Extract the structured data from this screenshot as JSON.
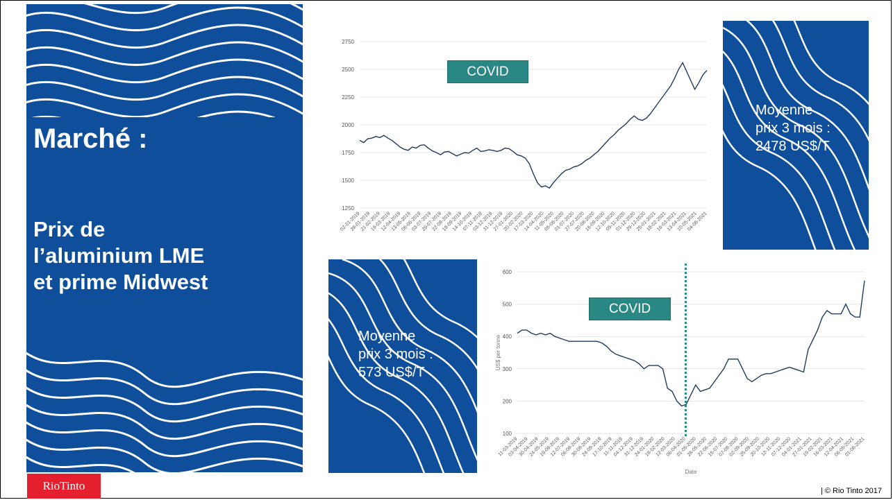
{
  "slide": {
    "title": "Marché :",
    "subtitle_lines": [
      "Prix de",
      "l’aluminium LME",
      "et prime Midwest"
    ],
    "logo_text": "RioTinto",
    "copyright": "| © Rio Tinto 2017"
  },
  "colors": {
    "brand_blue": "#0e4e9a",
    "covid_box": "#2a8884",
    "covid_line": "#2a8884",
    "series_line": "#1f3a5c",
    "logo_red": "#e4202e"
  },
  "annotations": {
    "lme_avg": [
      "Moyenne",
      "prix 3 mois :",
      "2478 US$/T"
    ],
    "midwest_avg": [
      "Moyenne",
      "prix 3 mois :",
      "573 US$/T"
    ]
  },
  "chart_data": [
    {
      "type": "line",
      "title": "",
      "annotation": "COVID",
      "covid_marker": "07-04-2020",
      "ylim": [
        1250,
        2750
      ],
      "yticks": [
        1250,
        1500,
        1750,
        2000,
        2250,
        2500,
        2750
      ],
      "grid": true,
      "xtick_labels": [
        "02-01-2019",
        "28-01-2019",
        "21-02-2019",
        "19-03-2019",
        "12-04-2019",
        "13-05-2019",
        "06-06-2019",
        "03-07-2019",
        "29-07-2019",
        "22-08-2019",
        "18-09-2019",
        "14-10-2019",
        "07-11-2019",
        "03-12-2019",
        "31-12-2019",
        "27-01-2020",
        "20-02-2020",
        "17-03-2020",
        "14-04-2020",
        "11-05-2020",
        "05-06-2020",
        "01-07-2020",
        "27-07-2020",
        "20-08-2020",
        "16-09-2020",
        "12-10-2020",
        "05-11-2020",
        "01-12-2020",
        "29-12-2020",
        "25-01-2021",
        "18-02-2021",
        "16-03-2021",
        "13-04-2021",
        "10-05-2021",
        "04-06-2021"
      ],
      "series": [
        {
          "values": [
            1860,
            1840,
            1875,
            1880,
            1895,
            1885,
            1905,
            1880,
            1860,
            1830,
            1800,
            1780,
            1770,
            1800,
            1790,
            1815,
            1820,
            1790,
            1765,
            1750,
            1730,
            1755,
            1760,
            1740,
            1720,
            1735,
            1750,
            1745,
            1770,
            1790,
            1760,
            1765,
            1775,
            1770,
            1760,
            1770,
            1790,
            1785,
            1760,
            1730,
            1720,
            1700,
            1650,
            1560,
            1480,
            1440,
            1450,
            1430,
            1480,
            1520,
            1560,
            1590,
            1600,
            1620,
            1630,
            1650,
            1680,
            1700,
            1730,
            1760,
            1800,
            1840,
            1880,
            1910,
            1950,
            1980,
            2010,
            2050,
            2080,
            2050,
            2040,
            2060,
            2100,
            2150,
            2200,
            2250,
            2300,
            2350,
            2420,
            2500,
            2560,
            2480,
            2400,
            2320,
            2380,
            2450,
            2490
          ]
        }
      ]
    },
    {
      "type": "line",
      "title": "",
      "annotation": "COVID",
      "covid_marker": "06-04-2020",
      "ylabel": "US$ per tonne",
      "xlabel": "Date",
      "ylim": [
        100,
        600
      ],
      "yticks": [
        100,
        200,
        300,
        400,
        500,
        600
      ],
      "grid": true,
      "xtick_labels": [
        "11-03-2019",
        "03-04-2019",
        "30-04-2019",
        "24-05-2019",
        "19-06-2019",
        "12-07-2019",
        "06-08-2019",
        "30-08-2019",
        "24-09-2019",
        "17-10-2019",
        "11-11-2019",
        "04-12-2019",
        "31-12-2019",
        "24-01-2020",
        "18-02-2020",
        "12-03-2020",
        "06-04-2020",
        "01-05-2020",
        "28-05-2020",
        "22-06-2020",
        "15-07-2020",
        "07-08-2020",
        "02-09-2020",
        "25-09-2020",
        "20-10-2020",
        "12-11-2020",
        "07-12-2020",
        "04-01-2021",
        "27-01-2021",
        "19-02-2021",
        "16-03-2021",
        "12-04-2021",
        "06-05-2021",
        "01-06-2021"
      ],
      "series": [
        {
          "values": [
            410,
            420,
            420,
            410,
            405,
            410,
            405,
            410,
            400,
            395,
            390,
            385,
            385,
            385,
            385,
            385,
            385,
            385,
            380,
            370,
            355,
            345,
            340,
            335,
            330,
            325,
            315,
            300,
            310,
            310,
            310,
            300,
            240,
            230,
            200,
            185,
            190,
            220,
            250,
            230,
            235,
            240,
            260,
            280,
            300,
            330,
            330,
            330,
            300,
            270,
            260,
            270,
            280,
            285,
            285,
            290,
            295,
            300,
            305,
            300,
            295,
            290,
            360,
            390,
            420,
            460,
            480,
            470,
            470,
            470,
            500,
            470,
            460,
            460,
            573
          ]
        }
      ]
    }
  ]
}
